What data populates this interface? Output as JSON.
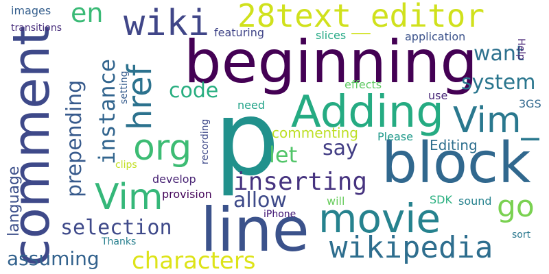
{
  "words": [
    {
      "text": "beginning",
      "color": "#440154"
    },
    {
      "text": "p",
      "color": "#21918c"
    },
    {
      "text": "block",
      "color": "#31688e"
    },
    {
      "text": "line",
      "color": "#3b528b"
    },
    {
      "text": "comment",
      "color": "#3e4989"
    },
    {
      "text": "Adding",
      "color": "#25ab82"
    },
    {
      "text": "28text_editor",
      "color": "#d0e11c"
    },
    {
      "text": "movie",
      "color": "#26828e"
    },
    {
      "text": "wiki",
      "color": "#404688"
    },
    {
      "text": "Vim_",
      "color": "#2a788e"
    },
    {
      "text": "org",
      "color": "#3dbc74"
    },
    {
      "text": "Vim",
      "color": "#35b779"
    },
    {
      "text": "href",
      "color": "#2c728e"
    },
    {
      "text": "wikipedia",
      "color": "#2e6e8e"
    },
    {
      "text": "inserting",
      "color": "#46337f"
    },
    {
      "text": "en",
      "color": "#3aba76"
    },
    {
      "text": "go",
      "color": "#7ad151"
    },
    {
      "text": "characters",
      "color": "#dde318"
    },
    {
      "text": "selection",
      "color": "#3f4a8a"
    },
    {
      "text": "instance",
      "color": "#32658e"
    },
    {
      "text": "prepending",
      "color": "#375a8c"
    },
    {
      "text": "code",
      "color": "#28ae80"
    },
    {
      "text": "want",
      "color": "#2d718e"
    },
    {
      "text": "system",
      "color": "#2a768e"
    },
    {
      "text": "let",
      "color": "#52c569"
    },
    {
      "text": "say",
      "color": "#433e85"
    },
    {
      "text": "allow",
      "color": "#3e4a89"
    },
    {
      "text": "assuming",
      "color": "#33628d"
    },
    {
      "text": "language",
      "color": "#3c4f8a"
    },
    {
      "text": "commenting",
      "color": "#bddf26"
    },
    {
      "text": "Editing",
      "color": "#2e6f8e"
    },
    {
      "text": "images",
      "color": "#355f8d"
    },
    {
      "text": "featuring",
      "color": "#404588"
    },
    {
      "text": "slices",
      "color": "#22a884"
    },
    {
      "text": "application",
      "color": "#3b528b"
    },
    {
      "text": "transitions",
      "color": "#472d7b"
    },
    {
      "text": "effects",
      "color": "#5ec962"
    },
    {
      "text": "need",
      "color": "#1fa287"
    },
    {
      "text": "use",
      "color": "#482878"
    },
    {
      "text": "3GS",
      "color": "#31688e"
    },
    {
      "text": "Please",
      "color": "#1f998a"
    },
    {
      "text": "clips",
      "color": "#c2df23"
    },
    {
      "text": "develop",
      "color": "#482374"
    },
    {
      "text": "provision",
      "color": "#450559"
    },
    {
      "text": "will",
      "color": "#67cc5c"
    },
    {
      "text": "SDK",
      "color": "#29af7f"
    },
    {
      "text": "sound",
      "color": "#26828e"
    },
    {
      "text": "iPhone",
      "color": "#3b0f70"
    },
    {
      "text": "Thanks",
      "color": "#277f8e"
    },
    {
      "text": "sort",
      "color": "#2a788e"
    },
    {
      "text": "setting",
      "color": "#365c8d"
    },
    {
      "text": "recording",
      "color": "#3e4989"
    },
    {
      "text": "Help",
      "color": "#482576"
    }
  ]
}
